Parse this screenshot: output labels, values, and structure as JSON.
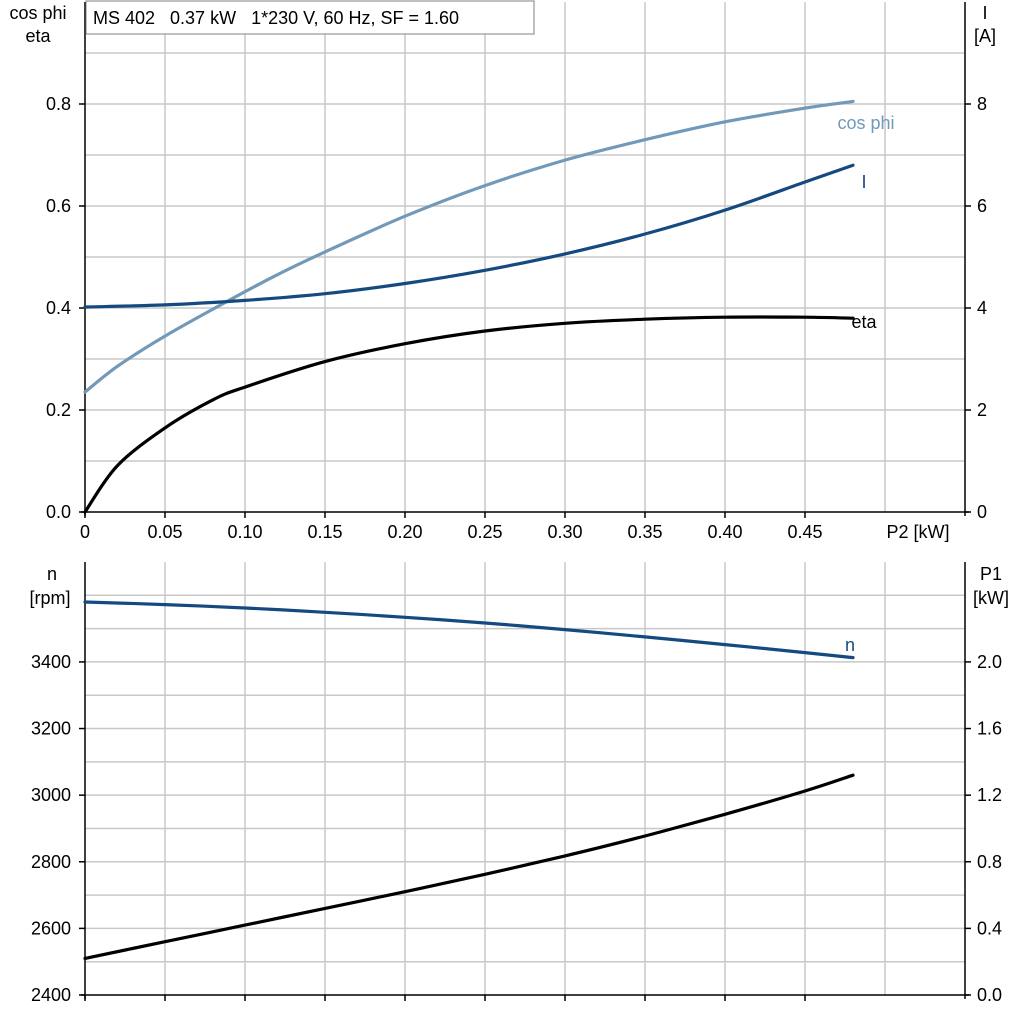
{
  "chart_data": [
    {
      "type": "line",
      "title": "MS 402   0.37 kW   1*230 V, 60 Hz, SF = 1.60",
      "xlabel": "P2 [kW]",
      "xlim": [
        0,
        0.55
      ],
      "x_ticks": [
        0,
        0.05,
        0.1,
        0.15,
        0.2,
        0.25,
        0.3,
        0.35,
        0.4,
        0.45
      ],
      "x_tick_labels": [
        "0",
        "0.05",
        "0.10",
        "0.15",
        "0.20",
        "0.25",
        "0.30",
        "0.35",
        "0.40",
        "0.45"
      ],
      "ylabel_left": [
        "cos phi",
        "eta"
      ],
      "ylim_left": [
        0,
        1.0
      ],
      "y_ticks_left": [
        0.0,
        0.2,
        0.4,
        0.6,
        0.8
      ],
      "y_tick_labels_left": [
        "0.0",
        "0.2",
        "0.4",
        "0.6",
        "0.8"
      ],
      "ylabel_right": [
        "I",
        "[A]"
      ],
      "ylim_right": [
        0,
        10
      ],
      "y_ticks_right": [
        0,
        2,
        4,
        6,
        8
      ],
      "y_tick_labels_right": [
        "0",
        "2",
        "4",
        "6",
        "8"
      ],
      "grid": true,
      "series": [
        {
          "name": "cos phi",
          "axis": "left",
          "color": "#7399b9",
          "x": [
            0,
            0.02,
            0.05,
            0.09,
            0.12,
            0.15,
            0.2,
            0.25,
            0.3,
            0.35,
            0.4,
            0.45,
            0.48
          ],
          "y": [
            0.235,
            0.285,
            0.345,
            0.415,
            0.465,
            0.51,
            0.58,
            0.64,
            0.69,
            0.73,
            0.765,
            0.792,
            0.805
          ]
        },
        {
          "name": "I",
          "axis": "right",
          "color": "#154a80",
          "x": [
            0,
            0.05,
            0.1,
            0.15,
            0.2,
            0.25,
            0.3,
            0.35,
            0.4,
            0.45,
            0.48
          ],
          "y": [
            4.02,
            4.06,
            4.15,
            4.28,
            4.48,
            4.74,
            5.06,
            5.45,
            5.92,
            6.47,
            6.8
          ]
        },
        {
          "name": "eta",
          "axis": "left",
          "color": "#000000",
          "x": [
            0,
            0.02,
            0.05,
            0.08,
            0.1,
            0.15,
            0.2,
            0.25,
            0.3,
            0.35,
            0.4,
            0.45,
            0.48
          ],
          "y": [
            0.0,
            0.09,
            0.165,
            0.22,
            0.245,
            0.295,
            0.33,
            0.355,
            0.37,
            0.378,
            0.382,
            0.382,
            0.38
          ]
        }
      ]
    },
    {
      "type": "line",
      "xlim": [
        0,
        0.55
      ],
      "x_ticks": [
        0,
        0.05,
        0.1,
        0.15,
        0.2,
        0.25,
        0.3,
        0.35,
        0.4,
        0.45
      ],
      "ylabel_left": [
        "n",
        "[rpm]"
      ],
      "ylim_left": [
        2400,
        3700
      ],
      "y_ticks_left": [
        2400,
        2600,
        2800,
        3000,
        3200,
        3400
      ],
      "y_tick_labels_left": [
        "2400",
        "2600",
        "2800",
        "3000",
        "3200",
        "3400"
      ],
      "ylabel_right": [
        "P1",
        "[kW]"
      ],
      "ylim_right": [
        0.0,
        2.6
      ],
      "y_ticks_right": [
        0.0,
        0.4,
        0.8,
        1.2,
        1.6,
        2.0
      ],
      "y_tick_labels_right": [
        "0.0",
        "0.4",
        "0.8",
        "1.2",
        "1.6",
        "2.0"
      ],
      "grid": true,
      "series": [
        {
          "name": "n",
          "axis": "left",
          "color": "#154a80",
          "x": [
            0,
            0.05,
            0.1,
            0.15,
            0.2,
            0.25,
            0.3,
            0.35,
            0.4,
            0.45,
            0.48
          ],
          "y": [
            3580,
            3572,
            3562,
            3549,
            3534,
            3517,
            3497,
            3475,
            3452,
            3428,
            3413
          ]
        },
        {
          "axis": "right",
          "color": "#000000",
          "x": [
            0,
            0.05,
            0.1,
            0.15,
            0.2,
            0.25,
            0.3,
            0.35,
            0.4,
            0.45,
            0.48
          ],
          "y": [
            0.22,
            0.32,
            0.42,
            0.52,
            0.62,
            0.725,
            0.835,
            0.955,
            1.085,
            1.225,
            1.32
          ]
        }
      ]
    }
  ]
}
